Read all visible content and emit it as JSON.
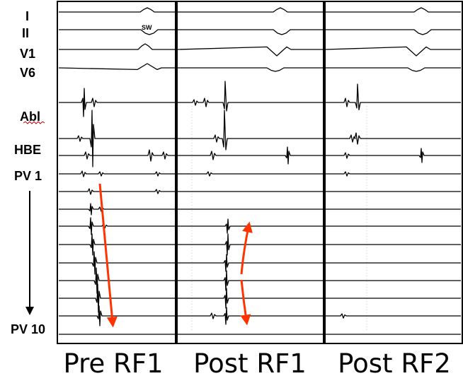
{
  "leads": {
    "i": "I",
    "ii": "II",
    "v1": "V1",
    "v6": "V6",
    "abl": "Abl",
    "hbe": "HBE",
    "pv1": "PV 1",
    "pv10": "PV 10"
  },
  "panels": [
    {
      "caption": "Pre RF1"
    },
    {
      "caption": "Post RF1"
    },
    {
      "caption": "Post RF2"
    }
  ],
  "annotation": "SW",
  "colors": {
    "trace": "#000000",
    "arrow": "#ff3300",
    "divider": "#000000",
    "grid": "#c8c8c8"
  }
}
